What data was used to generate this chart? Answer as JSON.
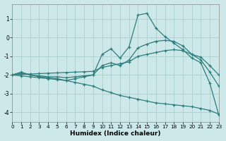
{
  "xlabel": "Humidex (Indice chaleur)",
  "ylabel": "",
  "background_color": "#cce8e8",
  "grid_color": "#aacfcf",
  "line_color": "#2e7d7d",
  "xlim": [
    0,
    23
  ],
  "ylim": [
    -4.5,
    1.8
  ],
  "xticks": [
    0,
    1,
    2,
    3,
    4,
    5,
    6,
    7,
    8,
    9,
    10,
    11,
    12,
    13,
    14,
    15,
    16,
    17,
    18,
    19,
    20,
    21,
    22,
    23
  ],
  "yticks": [
    -4,
    -3,
    -2,
    -1,
    0,
    1
  ],
  "curves": [
    {
      "x": [
        0,
        1,
        2,
        3,
        4,
        5,
        6,
        7,
        8,
        9,
        10,
        11,
        12,
        13,
        14,
        15,
        16,
        17,
        18,
        19,
        20,
        21,
        22,
        23
      ],
      "y": [
        -2.0,
        -1.85,
        -2.0,
        -2.1,
        -2.15,
        -2.2,
        -2.3,
        -2.2,
        -2.1,
        -2.0,
        -0.9,
        -0.6,
        -1.1,
        -0.5,
        1.2,
        1.3,
        0.5,
        0.05,
        -0.3,
        -0.65,
        -1.1,
        -1.35,
        -2.45,
        -4.15
      ]
    },
    {
      "x": [
        0,
        1,
        2,
        3,
        4,
        5,
        6,
        7,
        8,
        9,
        10,
        11,
        12,
        13,
        14,
        15,
        16,
        17,
        18,
        19,
        20,
        21,
        22,
        23
      ],
      "y": [
        -2.0,
        -1.9,
        -2.0,
        -2.05,
        -2.1,
        -2.1,
        -2.15,
        -2.1,
        -2.05,
        -2.0,
        -1.5,
        -1.35,
        -1.5,
        -1.2,
        -0.55,
        -0.35,
        -0.2,
        -0.15,
        -0.2,
        -0.45,
        -0.9,
        -1.2,
        -1.85,
        -2.6
      ]
    },
    {
      "x": [
        0,
        1,
        2,
        3,
        4,
        5,
        6,
        7,
        8,
        9,
        10,
        11,
        12,
        13,
        14,
        15,
        16,
        17,
        18,
        19,
        20,
        21,
        22,
        23
      ],
      "y": [
        -2.0,
        -1.97,
        -1.95,
        -1.93,
        -1.91,
        -1.89,
        -1.87,
        -1.85,
        -1.83,
        -1.81,
        -1.6,
        -1.5,
        -1.4,
        -1.3,
        -1.0,
        -0.9,
        -0.8,
        -0.7,
        -0.65,
        -0.7,
        -0.9,
        -1.05,
        -1.5,
        -2.0
      ]
    },
    {
      "x": [
        0,
        1,
        2,
        3,
        4,
        5,
        6,
        7,
        8,
        9,
        10,
        11,
        12,
        13,
        14,
        15,
        16,
        17,
        18,
        19,
        20,
        21,
        22,
        23
      ],
      "y": [
        -2.0,
        -2.05,
        -2.1,
        -2.15,
        -2.2,
        -2.25,
        -2.3,
        -2.4,
        -2.5,
        -2.6,
        -2.8,
        -2.95,
        -3.1,
        -3.2,
        -3.3,
        -3.4,
        -3.5,
        -3.55,
        -3.6,
        -3.65,
        -3.7,
        -3.8,
        -3.9,
        -4.1
      ]
    }
  ]
}
